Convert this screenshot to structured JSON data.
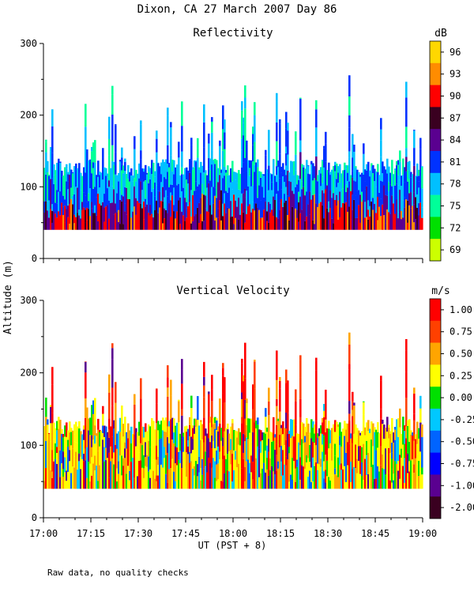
{
  "header": {
    "title": "Dixon, CA 27 March 2007  Day  86"
  },
  "footer": {
    "note": "Raw data, no quality checks"
  },
  "y_axis_label": "Altitude (m)",
  "x_axis_label": "UT  (PST + 8)",
  "chart_data": [
    {
      "type": "heatmap",
      "title": "Reflectivity",
      "xlabel": "UT  (PST + 8)",
      "ylabel": "Altitude (m)",
      "x_ticks": [
        "17:00",
        "17:15",
        "17:30",
        "17:45",
        "18:00",
        "18:15",
        "18:30",
        "18:45",
        "19:00"
      ],
      "xlim_minutes": [
        0,
        120
      ],
      "y_ticks": [
        "0",
        "100",
        "200",
        "300"
      ],
      "ylim": [
        0,
        300
      ],
      "data_bottom_m": 40,
      "typical_top_m": 140,
      "max_top_m": 260,
      "colorbar": {
        "unit": "dB",
        "labels": [
          "96",
          "93",
          "90",
          "87",
          "84",
          "81",
          "78",
          "75",
          "72",
          "69"
        ],
        "colors": [
          "#ffd700",
          "#ff8c00",
          "#ff0000",
          "#3a0020",
          "#5a0090",
          "#0032ff",
          "#00c0ff",
          "#00ff99",
          "#00e000",
          "#ccff00"
        ]
      }
    },
    {
      "type": "heatmap",
      "title": "Vertical Velocity",
      "xlabel": "UT  (PST + 8)",
      "ylabel": "Altitude (m)",
      "x_ticks": [
        "17:00",
        "17:15",
        "17:30",
        "17:45",
        "18:00",
        "18:15",
        "18:30",
        "18:45",
        "19:00"
      ],
      "xlim_minutes": [
        0,
        120
      ],
      "y_ticks": [
        "0",
        "100",
        "200",
        "300"
      ],
      "ylim": [
        0,
        300
      ],
      "data_bottom_m": 40,
      "typical_top_m": 140,
      "max_top_m": 260,
      "colorbar": {
        "unit": "m/s",
        "labels": [
          "1.00",
          "0.75",
          "0.50",
          "0.25",
          "0.00",
          "-0.25",
          "-0.50",
          "-0.75",
          "-1.00",
          "-2.00"
        ],
        "colors": [
          "#ff0000",
          "#ff4000",
          "#ffa500",
          "#ffff00",
          "#00e000",
          "#00c8ff",
          "#0064ff",
          "#0000ff",
          "#5a0090",
          "#3a0020"
        ]
      }
    }
  ]
}
